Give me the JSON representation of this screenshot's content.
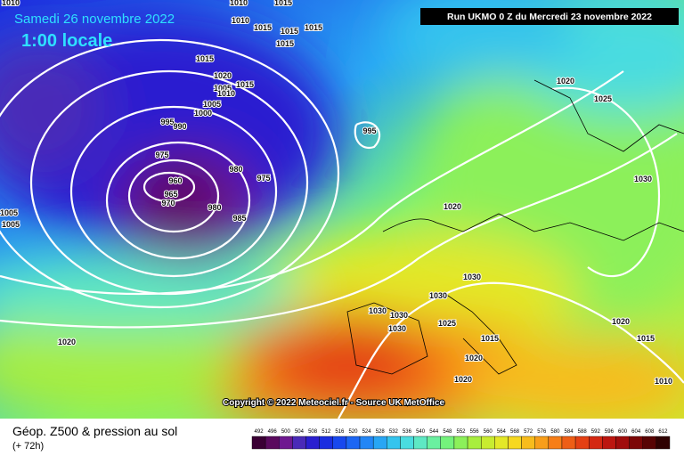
{
  "header": {
    "date": "Samedi 26 novembre 2022",
    "time": "1:00 locale",
    "run": "Run UKMO 0 Z du Mercredi 23 novembre 2022"
  },
  "copyright": "Copyright © 2022 Meteociel.fr - Source UK MetOffice",
  "footer": {
    "title": "Géop. Z500 & pression au sol",
    "lead": "(+ 72h)"
  },
  "scale": {
    "labels": [
      "492",
      "496",
      "500",
      "504",
      "508",
      "512",
      "516",
      "520",
      "524",
      "528",
      "532",
      "536",
      "540",
      "544",
      "548",
      "552",
      "556",
      "560",
      "564",
      "568",
      "572",
      "576",
      "580",
      "584",
      "588",
      "592",
      "596",
      "600",
      "604",
      "608",
      "612"
    ],
    "colors": [
      "#3a0034",
      "#5a0a5e",
      "#6e1890",
      "#4a2ab8",
      "#2a1fd0",
      "#1a2ee0",
      "#1848ee",
      "#1c66f4",
      "#2286f6",
      "#28a6f4",
      "#34c4ee",
      "#4adce0",
      "#5ee8c4",
      "#6af0a0",
      "#74f27c",
      "#8cf05a",
      "#a8ee3e",
      "#c8ec30",
      "#e4e828",
      "#f6d820",
      "#f8bc1c",
      "#f89e1a",
      "#f67e18",
      "#ee5e16",
      "#e44014",
      "#d42812",
      "#bc1610",
      "#a00c0c",
      "#7c0808",
      "#580404",
      "#300202"
    ]
  },
  "isobar_labels": [
    "1010",
    "1010",
    "1015",
    "1010",
    "1015",
    "1015",
    "1015",
    "1015",
    "1015",
    "1020",
    "1005",
    "1015",
    "1010",
    "1005",
    "1000",
    "995",
    "990",
    "995",
    "975",
    "980",
    "975",
    "980",
    "985",
    "965",
    "970",
    "960",
    "1005",
    "1005",
    "1020",
    "1025",
    "1030",
    "1020",
    "1030",
    "1030",
    "1030",
    "1030",
    "1030",
    "1025",
    "1015",
    "1020",
    "1015",
    "1020",
    "1020",
    "1010",
    "1020"
  ]
}
